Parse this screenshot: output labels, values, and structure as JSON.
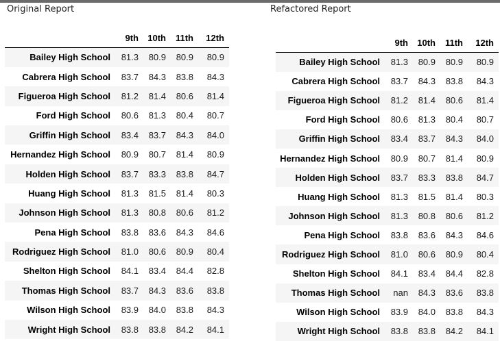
{
  "left": {
    "title": "Original Report",
    "columns": [
      "9th",
      "10th",
      "11th",
      "12th"
    ],
    "rows": [
      {
        "school": "Bailey High School",
        "values": [
          "81.3",
          "80.9",
          "80.9",
          "80.9"
        ]
      },
      {
        "school": "Cabrera High School",
        "values": [
          "83.7",
          "84.3",
          "83.8",
          "84.3"
        ]
      },
      {
        "school": "Figueroa High School",
        "values": [
          "81.2",
          "81.4",
          "80.6",
          "81.4"
        ]
      },
      {
        "school": "Ford High School",
        "values": [
          "80.6",
          "81.3",
          "80.4",
          "80.7"
        ]
      },
      {
        "school": "Griffin High School",
        "values": [
          "83.4",
          "83.7",
          "84.3",
          "84.0"
        ]
      },
      {
        "school": "Hernandez High School",
        "values": [
          "80.9",
          "80.7",
          "81.4",
          "80.9"
        ]
      },
      {
        "school": "Holden High School",
        "values": [
          "83.7",
          "83.3",
          "83.8",
          "84.7"
        ]
      },
      {
        "school": "Huang High School",
        "values": [
          "81.3",
          "81.5",
          "81.4",
          "80.3"
        ]
      },
      {
        "school": "Johnson High School",
        "values": [
          "81.3",
          "80.8",
          "80.6",
          "81.2"
        ]
      },
      {
        "school": "Pena High School",
        "values": [
          "83.8",
          "83.6",
          "84.3",
          "84.6"
        ]
      },
      {
        "school": "Rodriguez High School",
        "values": [
          "81.0",
          "80.6",
          "80.9",
          "80.4"
        ]
      },
      {
        "school": "Shelton High School",
        "values": [
          "84.1",
          "83.4",
          "84.4",
          "82.8"
        ]
      },
      {
        "school": "Thomas High School",
        "values": [
          "83.7",
          "84.3",
          "83.6",
          "83.8"
        ]
      },
      {
        "school": "Wilson High School",
        "values": [
          "83.9",
          "84.0",
          "83.8",
          "84.3"
        ]
      },
      {
        "school": "Wright High School",
        "values": [
          "83.8",
          "83.8",
          "84.2",
          "84.1"
        ]
      }
    ]
  },
  "right": {
    "title": "Refactored Report",
    "columns": [
      "9th",
      "10th",
      "11th",
      "12th"
    ],
    "rows": [
      {
        "school": "Bailey High School",
        "values": [
          "81.3",
          "80.9",
          "80.9",
          "80.9"
        ]
      },
      {
        "school": "Cabrera High School",
        "values": [
          "83.7",
          "84.3",
          "83.8",
          "84.3"
        ]
      },
      {
        "school": "Figueroa High School",
        "values": [
          "81.2",
          "81.4",
          "80.6",
          "81.4"
        ]
      },
      {
        "school": "Ford High School",
        "values": [
          "80.6",
          "81.3",
          "80.4",
          "80.7"
        ]
      },
      {
        "school": "Griffin High School",
        "values": [
          "83.4",
          "83.7",
          "84.3",
          "84.0"
        ]
      },
      {
        "school": "Hernandez High School",
        "values": [
          "80.9",
          "80.7",
          "81.4",
          "80.9"
        ]
      },
      {
        "school": "Holden High School",
        "values": [
          "83.7",
          "83.3",
          "83.8",
          "84.7"
        ]
      },
      {
        "school": "Huang High School",
        "values": [
          "81.3",
          "81.5",
          "81.4",
          "80.3"
        ]
      },
      {
        "school": "Johnson High School",
        "values": [
          "81.3",
          "80.8",
          "80.6",
          "81.2"
        ]
      },
      {
        "school": "Pena High School",
        "values": [
          "83.8",
          "83.6",
          "84.3",
          "84.6"
        ]
      },
      {
        "school": "Rodriguez High School",
        "values": [
          "81.0",
          "80.6",
          "80.9",
          "80.4"
        ]
      },
      {
        "school": "Shelton High School",
        "values": [
          "84.1",
          "83.4",
          "84.4",
          "82.8"
        ]
      },
      {
        "school": "Thomas High School",
        "values": [
          "nan",
          "84.3",
          "83.6",
          "83.8"
        ]
      },
      {
        "school": "Wilson High School",
        "values": [
          "83.9",
          "84.0",
          "83.8",
          "84.3"
        ]
      },
      {
        "school": "Wright High School",
        "values": [
          "83.8",
          "83.8",
          "84.2",
          "84.1"
        ]
      }
    ]
  }
}
